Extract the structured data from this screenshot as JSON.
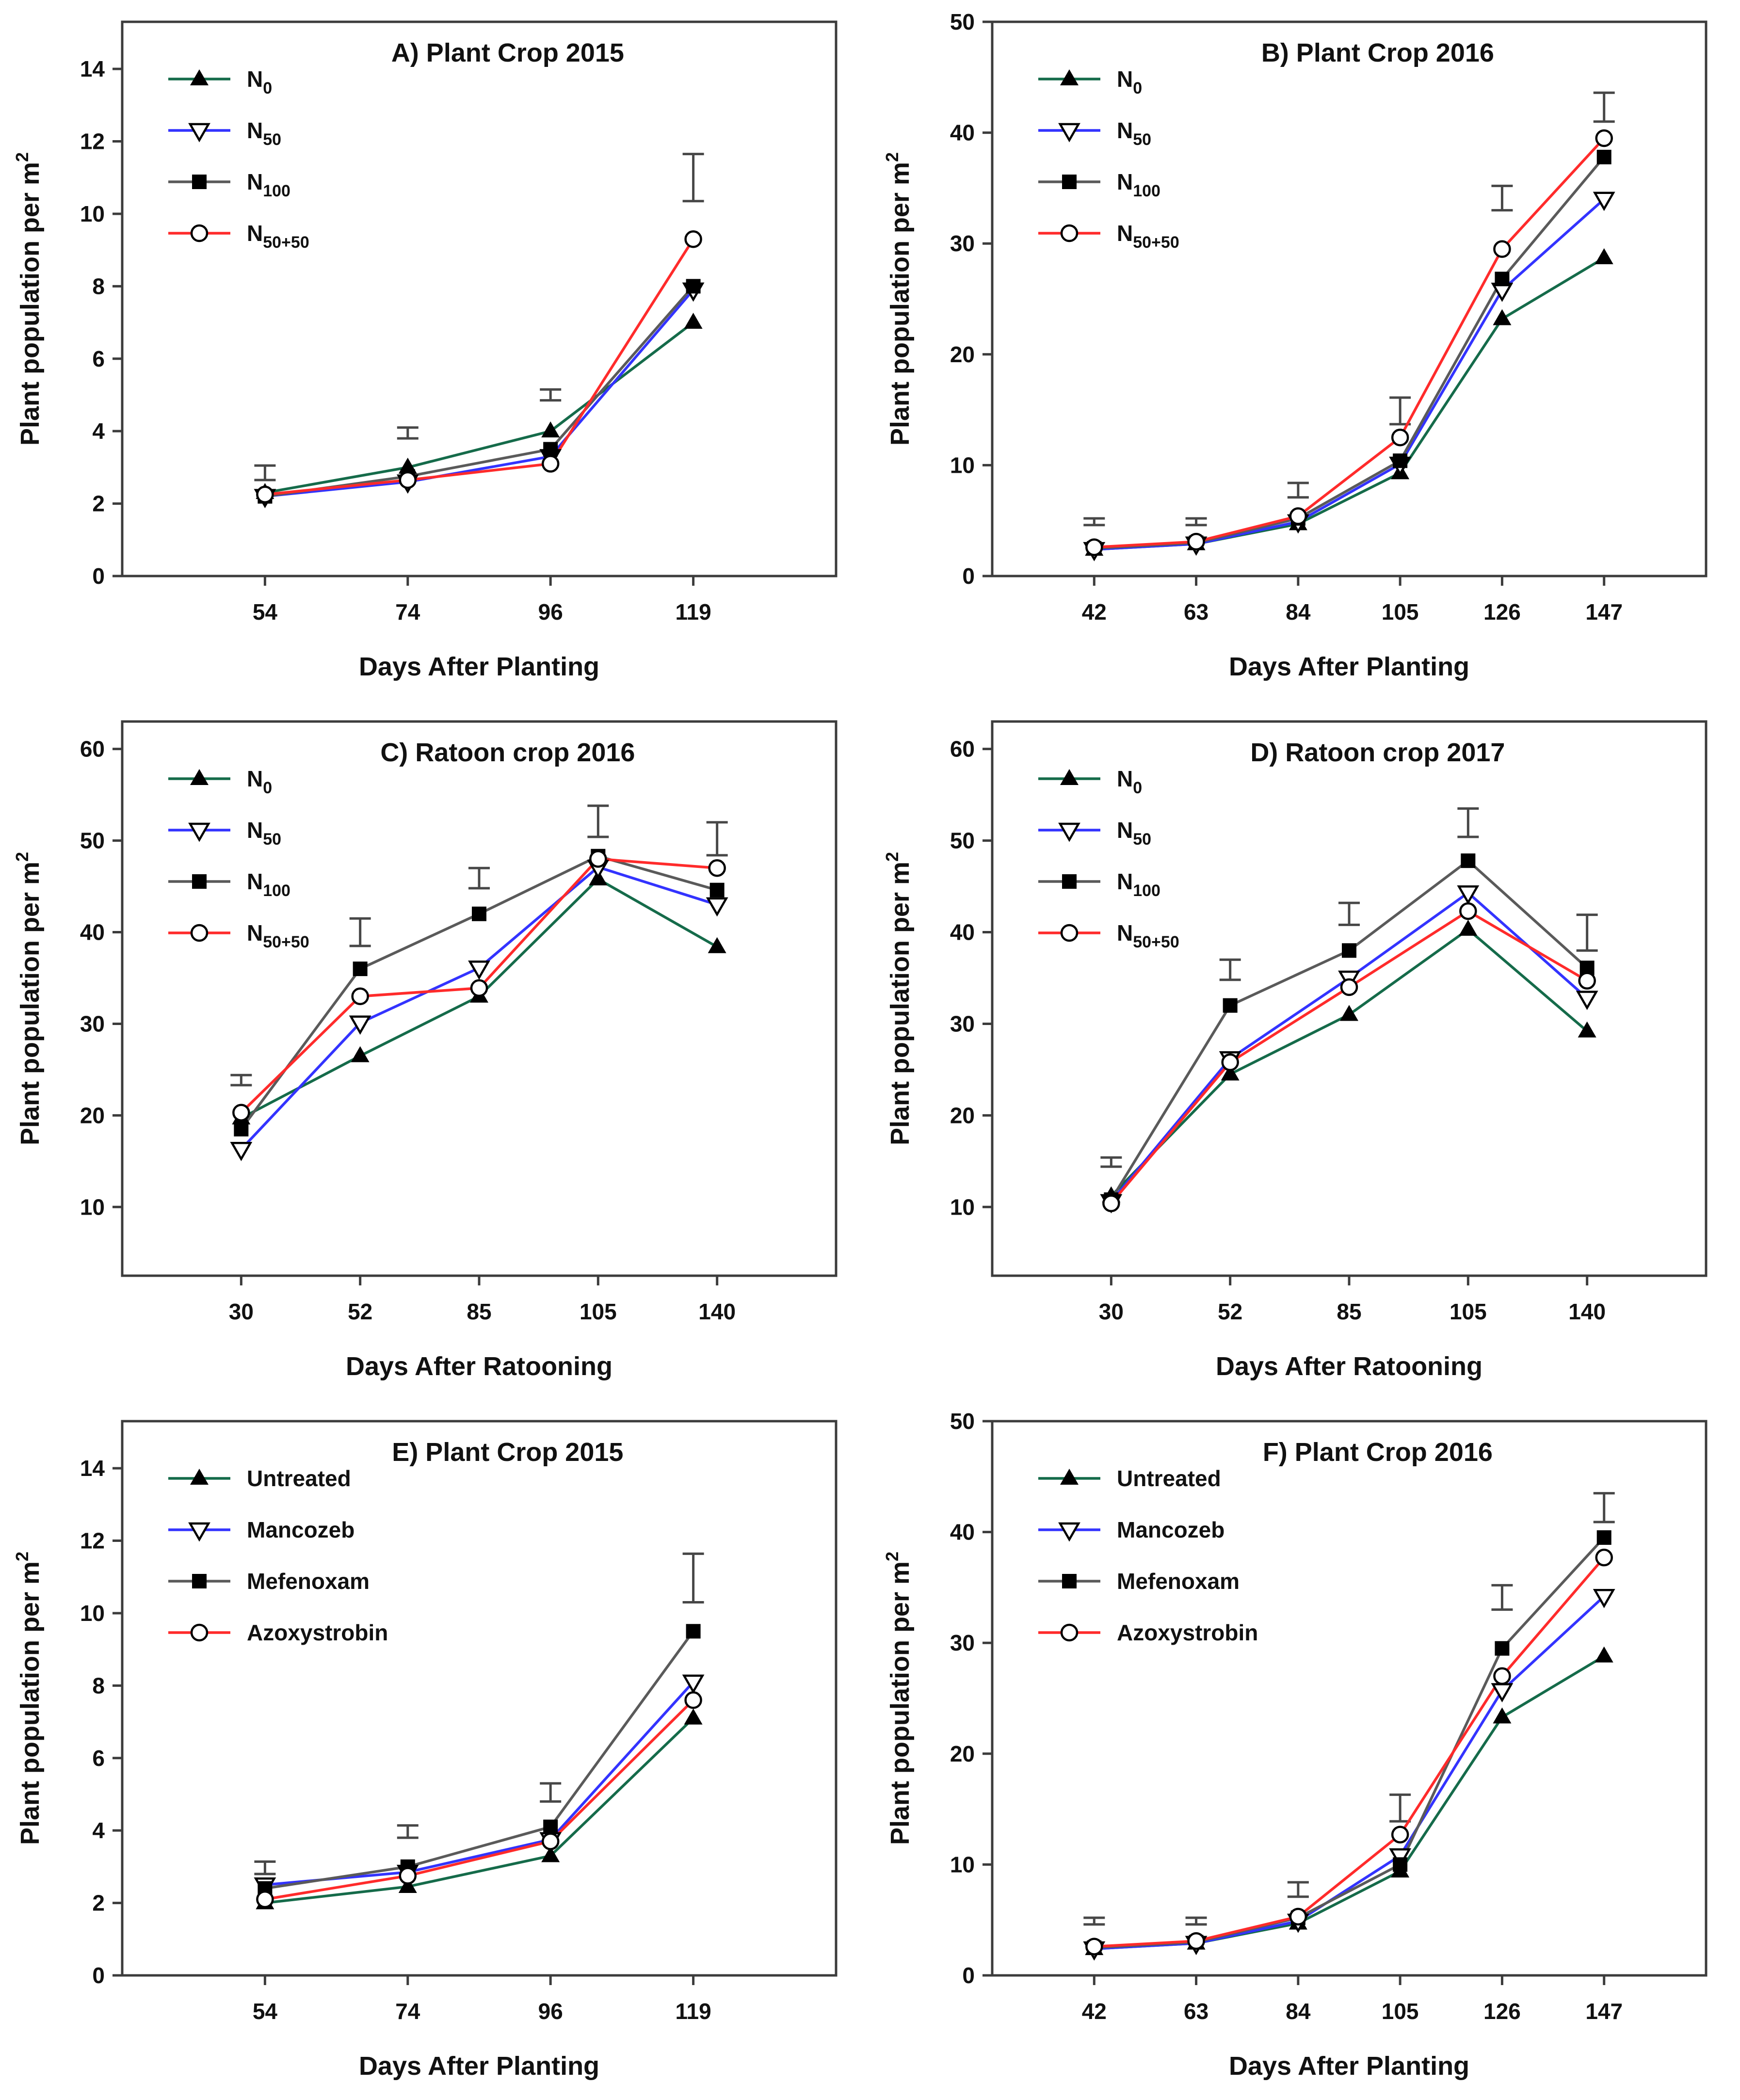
{
  "figure": {
    "background": "#ffffff",
    "frame_color": "#3c3c3c",
    "error_bar_color": "#474747",
    "marker_color": "#000000"
  },
  "chart_data": [
    {
      "id": "A",
      "type": "line",
      "title": "A) Plant Crop 2015",
      "xlabel": "Days After Planting",
      "ylabel": "Plant population per m",
      "ylabel_sup": "2",
      "x": [
        54,
        74,
        96,
        119
      ],
      "ylim": [
        0,
        15.3
      ],
      "yticks": [
        0,
        2,
        4,
        6,
        8,
        10,
        12,
        14
      ],
      "legend_position": "top-left",
      "grid": false,
      "series": [
        {
          "label": "N",
          "sub": "0",
          "color": "#156b4a",
          "marker": "triangle-filled",
          "values": [
            2.3,
            3.0,
            4.0,
            7.0
          ]
        },
        {
          "label": "N",
          "sub": "50",
          "color": "#3333ff",
          "marker": "triangle-down-open",
          "values": [
            2.2,
            2.6,
            3.3,
            7.9
          ]
        },
        {
          "label": "N",
          "sub": "100",
          "color": "#5a5a5a",
          "marker": "square-filled",
          "values": [
            2.2,
            2.75,
            3.5,
            8.0
          ]
        },
        {
          "label": "N",
          "sub": "50+50",
          "color": "#ff2b2b",
          "marker": "circle-open",
          "values": [
            2.25,
            2.65,
            3.1,
            9.3
          ]
        }
      ],
      "error_bars": [
        {
          "x_index": 0,
          "center": 2.85,
          "half": 0.2
        },
        {
          "x_index": 1,
          "center": 3.95,
          "half": 0.15
        },
        {
          "x_index": 2,
          "center": 5.0,
          "half": 0.15
        },
        {
          "x_index": 3,
          "center": 11.0,
          "half": 0.65
        }
      ]
    },
    {
      "id": "B",
      "type": "line",
      "title": "B) Plant Crop 2016",
      "xlabel": "Days After Planting",
      "ylabel": "Plant population per m",
      "ylabel_sup": "2",
      "x": [
        42,
        63,
        84,
        105,
        126,
        147
      ],
      "ylim": [
        0,
        50
      ],
      "yticks": [
        0,
        10,
        20,
        30,
        40,
        50
      ],
      "legend_position": "top-left",
      "grid": false,
      "series": [
        {
          "label": "N",
          "sub": "0",
          "color": "#156b4a",
          "marker": "triangle-filled",
          "values": [
            2.4,
            2.9,
            4.7,
            9.3,
            23.2,
            28.7
          ]
        },
        {
          "label": "N",
          "sub": "50",
          "color": "#3333ff",
          "marker": "triangle-down-open",
          "values": [
            2.4,
            2.9,
            4.9,
            10.1,
            25.8,
            34.0
          ]
        },
        {
          "label": "N",
          "sub": "100",
          "color": "#5a5a5a",
          "marker": "square-filled",
          "values": [
            2.5,
            3.0,
            5.2,
            10.4,
            26.8,
            37.8
          ]
        },
        {
          "label": "N",
          "sub": "50+50",
          "color": "#ff2b2b",
          "marker": "circle-open",
          "values": [
            2.6,
            3.1,
            5.4,
            12.5,
            29.5,
            39.5
          ]
        }
      ],
      "error_bars": [
        {
          "x_index": 0,
          "center": 4.9,
          "half": 0.3
        },
        {
          "x_index": 1,
          "center": 4.9,
          "half": 0.3
        },
        {
          "x_index": 2,
          "center": 7.75,
          "half": 0.65
        },
        {
          "x_index": 3,
          "center": 14.9,
          "half": 1.2
        },
        {
          "x_index": 4,
          "center": 34.1,
          "half": 1.1
        },
        {
          "x_index": 5,
          "center": 42.3,
          "half": 1.3
        }
      ]
    },
    {
      "id": "C",
      "type": "line",
      "title": "C) Ratoon crop 2016",
      "xlabel": "Days After Ratooning",
      "ylabel": "Plant population per m",
      "ylabel_sup": "2",
      "x": [
        30,
        52,
        85,
        105,
        140
      ],
      "ylim": [
        2.5,
        63
      ],
      "yticks": [
        10,
        20,
        30,
        40,
        50,
        60
      ],
      "legend_position": "top-left",
      "grid": false,
      "series": [
        {
          "label": "N",
          "sub": "0",
          "color": "#156b4a",
          "marker": "triangle-filled",
          "values": [
            19.7,
            26.5,
            33.0,
            45.8,
            38.4
          ]
        },
        {
          "label": "N",
          "sub": "50",
          "color": "#3333ff",
          "marker": "triangle-down-open",
          "values": [
            16.3,
            30.1,
            36.1,
            47.1,
            43.0
          ]
        },
        {
          "label": "N",
          "sub": "100",
          "color": "#5a5a5a",
          "marker": "square-filled",
          "values": [
            18.5,
            36.0,
            42.0,
            48.3,
            44.6
          ]
        },
        {
          "label": "N",
          "sub": "50+50",
          "color": "#ff2b2b",
          "marker": "circle-open",
          "values": [
            20.3,
            33.0,
            33.9,
            48.0,
            47.0
          ]
        }
      ],
      "error_bars": [
        {
          "x_index": 0,
          "center": 23.85,
          "half": 0.55
        },
        {
          "x_index": 1,
          "center": 40.0,
          "half": 1.5
        },
        {
          "x_index": 2,
          "center": 45.9,
          "half": 1.1
        },
        {
          "x_index": 3,
          "center": 52.1,
          "half": 1.7
        },
        {
          "x_index": 4,
          "center": 50.2,
          "half": 1.8
        }
      ]
    },
    {
      "id": "D",
      "type": "line",
      "title": "D) Ratoon crop 2017",
      "xlabel": "Days After Ratooning",
      "ylabel": "Plant population per m",
      "ylabel_sup": "2",
      "x": [
        30,
        52,
        85,
        105,
        140
      ],
      "ylim": [
        2.5,
        63
      ],
      "yticks": [
        10,
        20,
        30,
        40,
        50,
        60
      ],
      "legend_position": "top-left",
      "grid": false,
      "series": [
        {
          "label": "N",
          "sub": "0",
          "color": "#156b4a",
          "marker": "triangle-filled",
          "values": [
            11.2,
            24.5,
            31.0,
            40.3,
            29.2
          ]
        },
        {
          "label": "N",
          "sub": "50",
          "color": "#3333ff",
          "marker": "triangle-down-open",
          "values": [
            10.6,
            26.2,
            35.0,
            44.3,
            32.8
          ]
        },
        {
          "label": "N",
          "sub": "100",
          "color": "#5a5a5a",
          "marker": "square-filled",
          "values": [
            10.8,
            32.0,
            38.0,
            47.8,
            36.1
          ]
        },
        {
          "label": "N",
          "sub": "50+50",
          "color": "#ff2b2b",
          "marker": "circle-open",
          "values": [
            10.4,
            25.8,
            34.0,
            42.3,
            34.7
          ]
        }
      ],
      "error_bars": [
        {
          "x_index": 0,
          "center": 14.9,
          "half": 0.5
        },
        {
          "x_index": 1,
          "center": 35.9,
          "half": 1.1
        },
        {
          "x_index": 2,
          "center": 42.0,
          "half": 1.2
        },
        {
          "x_index": 3,
          "center": 51.95,
          "half": 1.55
        },
        {
          "x_index": 4,
          "center": 39.95,
          "half": 1.95
        }
      ]
    },
    {
      "id": "E",
      "type": "line",
      "title": "E) Plant Crop 2015",
      "xlabel": "Days After Planting",
      "ylabel": "Plant population per m",
      "ylabel_sup": "2",
      "x": [
        54,
        74,
        96,
        119
      ],
      "ylim": [
        0,
        15.3
      ],
      "yticks": [
        0,
        2,
        4,
        6,
        8,
        10,
        12,
        14
      ],
      "legend_position": "top-left",
      "grid": false,
      "series": [
        {
          "label": "Untreated",
          "sub": "",
          "color": "#156b4a",
          "marker": "triangle-filled",
          "values": [
            2.0,
            2.45,
            3.3,
            7.1
          ]
        },
        {
          "label": "Mancozeb",
          "sub": "",
          "color": "#3333ff",
          "marker": "triangle-down-open",
          "values": [
            2.5,
            2.85,
            3.75,
            8.1
          ]
        },
        {
          "label": "Mefenoxam",
          "sub": "",
          "color": "#5a5a5a",
          "marker": "square-filled",
          "values": [
            2.4,
            3.0,
            4.1,
            9.5
          ]
        },
        {
          "label": "Azoxystrobin",
          "sub": "",
          "color": "#ff2b2b",
          "marker": "circle-open",
          "values": [
            2.1,
            2.75,
            3.7,
            7.6
          ]
        }
      ],
      "error_bars": [
        {
          "x_index": 0,
          "center": 2.97,
          "half": 0.17
        },
        {
          "x_index": 1,
          "center": 3.97,
          "half": 0.17
        },
        {
          "x_index": 2,
          "center": 5.05,
          "half": 0.25
        },
        {
          "x_index": 3,
          "center": 10.97,
          "half": 0.67
        }
      ]
    },
    {
      "id": "F",
      "type": "line",
      "title": "F) Plant Crop 2016",
      "xlabel": "Days After Planting",
      "ylabel": "Plant population per m",
      "ylabel_sup": "2",
      "x": [
        42,
        63,
        84,
        105,
        126,
        147
      ],
      "ylim": [
        0,
        50
      ],
      "yticks": [
        0,
        10,
        20,
        30,
        40,
        50
      ],
      "legend_position": "top-left",
      "grid": false,
      "series": [
        {
          "label": "Untreated",
          "sub": "",
          "color": "#156b4a",
          "marker": "triangle-filled",
          "values": [
            2.4,
            2.9,
            4.7,
            9.4,
            23.3,
            28.8
          ]
        },
        {
          "label": "Mancozeb",
          "sub": "",
          "color": "#3333ff",
          "marker": "triangle-down-open",
          "values": [
            2.4,
            2.9,
            4.9,
            10.8,
            25.7,
            34.2
          ]
        },
        {
          "label": "Mefenoxam",
          "sub": "",
          "color": "#5a5a5a",
          "marker": "square-filled",
          "values": [
            2.5,
            3.0,
            5.2,
            10.0,
            29.5,
            39.5
          ]
        },
        {
          "label": "Azoxystrobin",
          "sub": "",
          "color": "#ff2b2b",
          "marker": "circle-open",
          "values": [
            2.6,
            3.1,
            5.3,
            12.7,
            27.0,
            37.7
          ]
        }
      ],
      "error_bars": [
        {
          "x_index": 0,
          "center": 4.9,
          "half": 0.3
        },
        {
          "x_index": 1,
          "center": 4.9,
          "half": 0.3
        },
        {
          "x_index": 2,
          "center": 7.75,
          "half": 0.65
        },
        {
          "x_index": 3,
          "center": 15.1,
          "half": 1.2
        },
        {
          "x_index": 4,
          "center": 34.1,
          "half": 1.1
        },
        {
          "x_index": 5,
          "center": 42.2,
          "half": 1.3
        }
      ]
    }
  ]
}
